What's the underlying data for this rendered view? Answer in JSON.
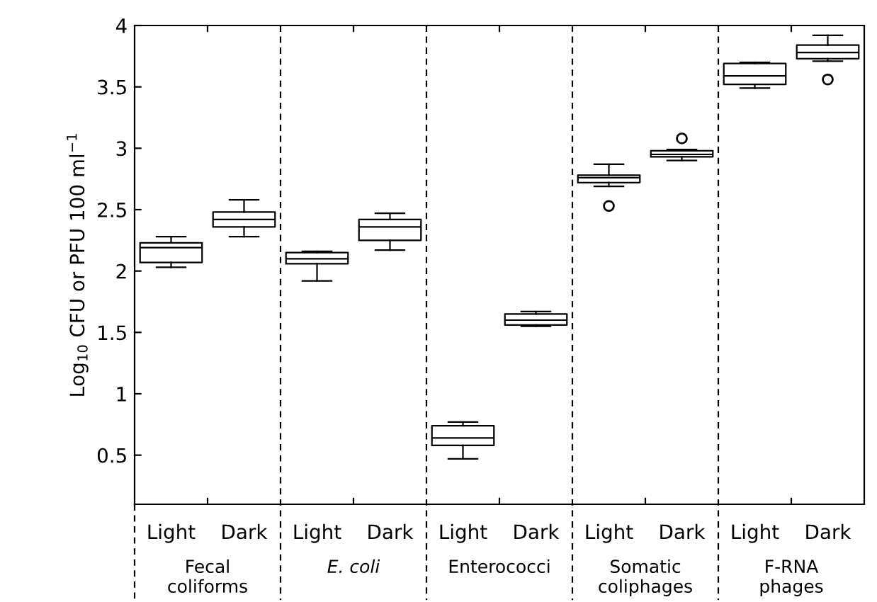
{
  "chart_data": {
    "type": "box",
    "ylabel": "Log$_{10}$ CFU or PFU 100 ml$^{−1}$",
    "categories": [
      "Light",
      "Dark",
      "Light",
      "Dark",
      "Light",
      "Dark",
      "Light",
      "Dark",
      "Light",
      "Dark"
    ],
    "annotations": [
      "Fecal\ncoliforms",
      "E. coli",
      "Enterococci",
      "Somatic\ncoliphages",
      "F-RNA\nphages"
    ],
    "boxes": [
      {
        "low": 2.03,
        "q1": 2.07,
        "median": 2.19,
        "q3": 2.23,
        "high": 2.28
      },
      {
        "low": 2.28,
        "q1": 2.36,
        "median": 2.42,
        "q3": 2.48,
        "high": 2.58
      },
      {
        "low": 1.92,
        "q1": 2.06,
        "median": 2.1,
        "q3": 2.15,
        "high": 2.16
      },
      {
        "low": 2.17,
        "q1": 2.25,
        "median": 2.36,
        "q3": 2.42,
        "high": 2.47
      },
      {
        "low": 0.47,
        "q1": 0.58,
        "median": 0.64,
        "q3": 0.74,
        "high": 0.77
      },
      {
        "low": 1.55,
        "q1": 1.56,
        "median": 1.6,
        "q3": 1.65,
        "high": 1.67
      },
      {
        "low": 2.69,
        "q1": 2.72,
        "median": 2.76,
        "q3": 2.78,
        "high": 2.87,
        "outliers": [
          2.53
        ]
      },
      {
        "low": 2.9,
        "q1": 2.93,
        "median": 2.95,
        "q3": 2.98,
        "high": 2.99,
        "outliers": [
          3.08
        ]
      },
      {
        "low": 3.49,
        "q1": 3.52,
        "median": 3.59,
        "q3": 3.69,
        "high": 3.7
      },
      {
        "low": 3.71,
        "q1": 3.73,
        "median": 3.78,
        "q3": 3.84,
        "high": 3.92,
        "outliers": [
          3.56
        ]
      }
    ],
    "ylim": [
      0.1,
      4
    ],
    "yticks": [
      0.5,
      1,
      1.5,
      2,
      2.5,
      3,
      3.5,
      4
    ],
    "grid": false
  }
}
